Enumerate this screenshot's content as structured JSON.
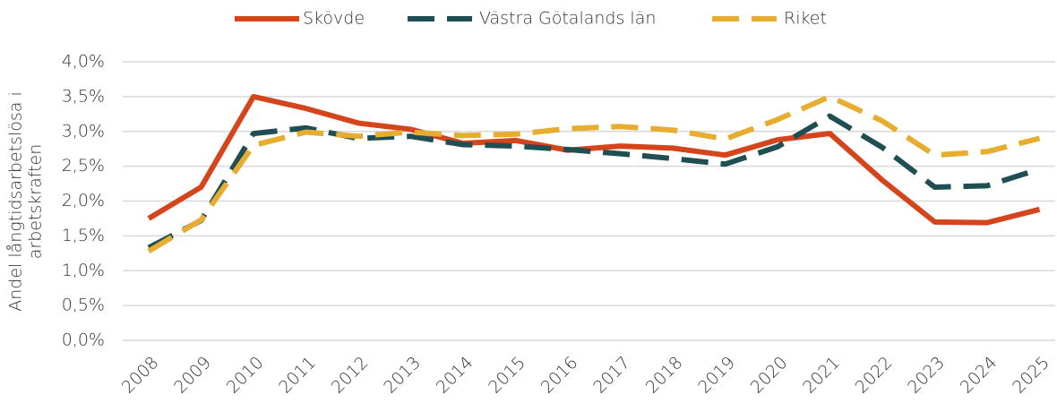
{
  "chart_data": {
    "type": "line",
    "ylabel": [
      "Andel långtidsarbetslösa i",
      "arbetskraften"
    ],
    "categories": [
      "2008",
      "2009",
      "2010",
      "2011",
      "2012",
      "2013",
      "2014",
      "2015",
      "2016",
      "2017",
      "2018",
      "2019",
      "2020",
      "2021",
      "2022",
      "2023",
      "2024",
      "2025"
    ],
    "series": [
      {
        "name": "Skövde",
        "color": "#d5451b",
        "dash": false,
        "values": [
          1.75,
          2.2,
          3.5,
          3.33,
          3.12,
          3.03,
          2.83,
          2.87,
          2.73,
          2.79,
          2.76,
          2.66,
          2.88,
          2.97,
          2.3,
          1.7,
          1.69,
          1.88
        ]
      },
      {
        "name": "Västra Götalands län",
        "color": "#1f4f52",
        "dash": true,
        "values": [
          1.33,
          1.72,
          2.97,
          3.05,
          2.9,
          2.93,
          2.81,
          2.79,
          2.74,
          2.68,
          2.61,
          2.53,
          2.78,
          3.22,
          2.77,
          2.2,
          2.22,
          2.46
        ]
      },
      {
        "name": "Riket",
        "color": "#e6ad2e",
        "dash": true,
        "values": [
          1.28,
          1.73,
          2.8,
          2.99,
          2.93,
          2.99,
          2.94,
          2.96,
          3.04,
          3.07,
          3.02,
          2.89,
          3.17,
          3.5,
          3.15,
          2.66,
          2.71,
          2.9
        ]
      }
    ],
    "ylim": [
      0,
      4
    ],
    "yticks": [
      {
        "value": 0,
        "label": "0,0%"
      },
      {
        "value": 0.5,
        "label": "0,5%"
      },
      {
        "value": 1,
        "label": "1,0%"
      },
      {
        "value": 1.5,
        "label": "1,5%"
      },
      {
        "value": 2,
        "label": "2,0%"
      },
      {
        "value": 2.5,
        "label": "2,5%"
      },
      {
        "value": 3,
        "label": "3,0%"
      },
      {
        "value": 3.5,
        "label": "3,5%"
      },
      {
        "value": 4,
        "label": "4,0%"
      }
    ],
    "grid": true,
    "legend": "top"
  }
}
